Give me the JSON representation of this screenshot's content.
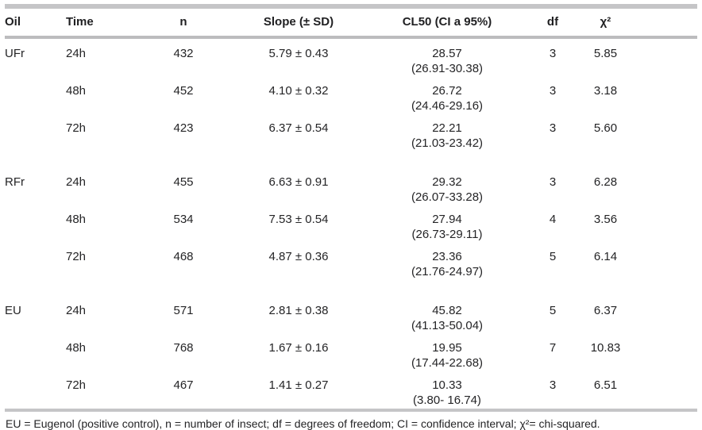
{
  "table": {
    "columns": [
      {
        "label": "Oil"
      },
      {
        "label": "Time"
      },
      {
        "label": "n"
      },
      {
        "label": "Slope (± SD)"
      },
      {
        "label": "CL50 (CI a 95%)"
      },
      {
        "label": "df"
      },
      {
        "label": "χ²"
      }
    ],
    "rows": [
      {
        "oil": "UFr",
        "time": "24h",
        "n": "432",
        "slope": "5.79 ± 0.43",
        "cl50": "28.57",
        "ci": "(26.91-30.38)",
        "df": "3",
        "chi2": "5.85"
      },
      {
        "oil": "",
        "time": "48h",
        "n": "452",
        "slope": "4.10 ± 0.32",
        "cl50": "26.72",
        "ci": "(24.46-29.16)",
        "df": "3",
        "chi2": "3.18"
      },
      {
        "oil": "",
        "time": "72h",
        "n": "423",
        "slope": "6.37 ± 0.54",
        "cl50": "22.21",
        "ci": "(21.03-23.42)",
        "df": "3",
        "chi2": "5.60"
      },
      {
        "oil": "RFr",
        "time": "24h",
        "n": "455",
        "slope": "6.63 ± 0.91",
        "cl50": "29.32",
        "ci": "(26.07-33.28)",
        "df": "3",
        "chi2": "6.28"
      },
      {
        "oil": "",
        "time": "48h",
        "n": "534",
        "slope": "7.53 ± 0.54",
        "cl50": "27.94",
        "ci": "(26.73-29.11)",
        "df": "4",
        "chi2": "3.56"
      },
      {
        "oil": "",
        "time": "72h",
        "n": "468",
        "slope": "4.87 ± 0.36",
        "cl50": "23.36",
        "ci": "(21.76-24.97)",
        "df": "5",
        "chi2": "6.14"
      },
      {
        "oil": "EU",
        "time": "24h",
        "n": "571",
        "slope": "2.81 ± 0.38",
        "cl50": "45.82",
        "ci": "(41.13-50.04)",
        "df": "5",
        "chi2": "6.37"
      },
      {
        "oil": "",
        "time": "48h",
        "n": "768",
        "slope": "1.67 ± 0.16",
        "cl50": "19.95",
        "ci": "(17.44-22.68)",
        "df": "7",
        "chi2": "10.83"
      },
      {
        "oil": "",
        "time": "72h",
        "n": "467",
        "slope": "1.41 ± 0.27",
        "cl50": "10.33",
        "ci": "(3.80- 16.74)",
        "df": "3",
        "chi2": "6.51"
      }
    ],
    "footnote": "EU = Eugenol (positive control), n = number of insect; df = degrees of freedom; CI = confidence interval; χ²= chi-squared."
  },
  "colors": {
    "rule_gray": "#c5c5c7",
    "text": "#242426"
  }
}
